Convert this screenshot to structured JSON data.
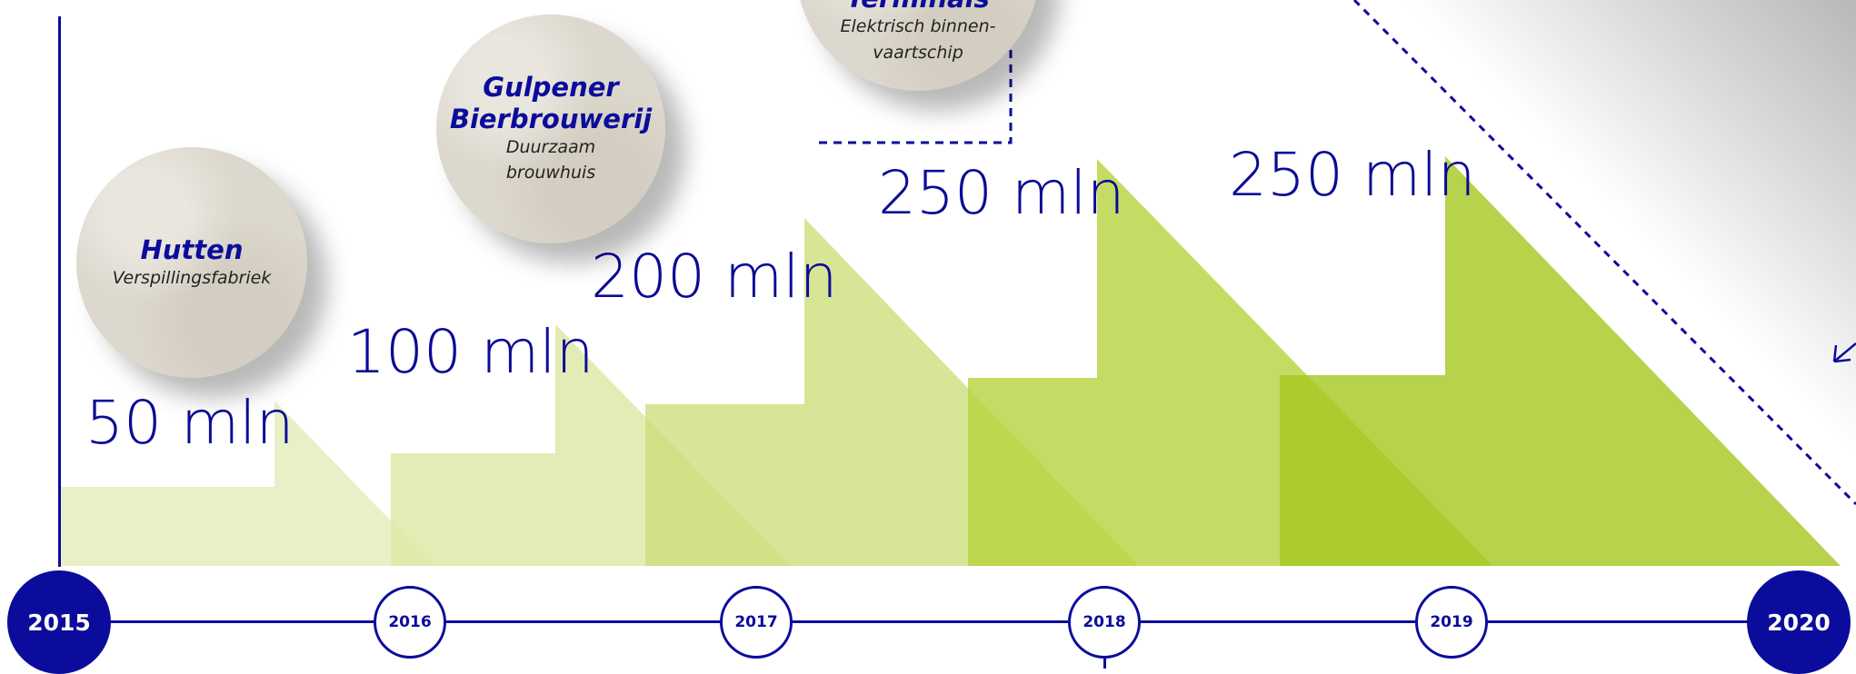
{
  "steps": [
    {
      "amount": "50 mln",
      "value_mln": 50,
      "color": "#e8efc4",
      "opacity": 0.95
    },
    {
      "amount": "100 mln",
      "value_mln": 100,
      "color": "#dfe9a8",
      "opacity": 0.85
    },
    {
      "amount": "200 mln",
      "value_mln": 200,
      "color": "#cddf7c",
      "opacity": 0.8
    },
    {
      "amount": "250 mln",
      "value_mln": 250,
      "color": "#b7d33d",
      "opacity": 0.8
    },
    {
      "amount": "250 mln",
      "value_mln": 250,
      "color": "#a5c71e",
      "opacity": 0.8
    }
  ],
  "projects": [
    {
      "title": "Hutten",
      "subtitle": "Verspillingsfabriek"
    },
    {
      "title": "Gulpener\nBierbrouwerij",
      "subtitle": "Duurzaam\nbrouwhuis"
    },
    {
      "title": "Terminals",
      "subtitle": "Elektrisch binnen-\nvaartschip"
    }
  ],
  "years": [
    "2015",
    "2016",
    "2017",
    "2018",
    "2019",
    "2020"
  ],
  "colors": {
    "accent": "#0c0c9c"
  },
  "icons": {
    "arrow": "arrow-down-left-icon"
  }
}
